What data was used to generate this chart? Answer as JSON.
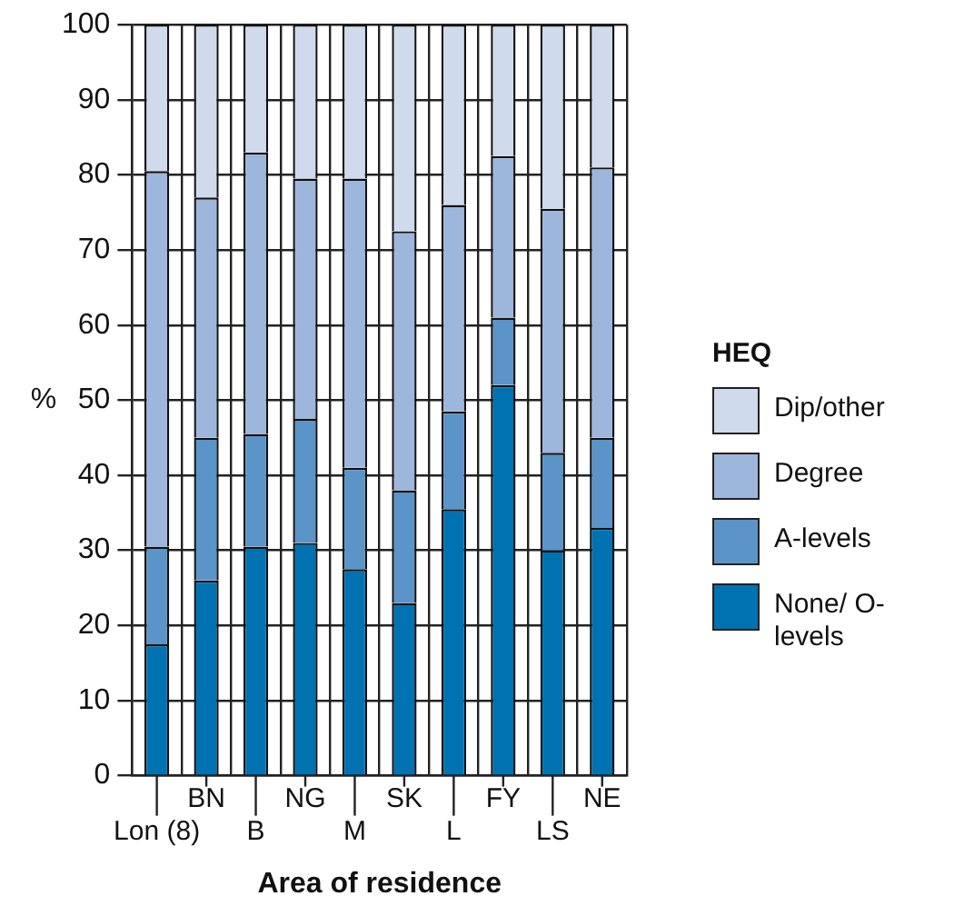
{
  "chart_data": {
    "type": "bar",
    "stacked": true,
    "xlabel": "Area of residence",
    "ylabel": "%",
    "legend_title": "HEQ",
    "legend": "right",
    "grid": true,
    "categories": [
      "Lon (8)",
      "BN",
      "B",
      "NG",
      "M",
      "SK",
      "L",
      "FY",
      "LS",
      "NE"
    ],
    "ylim": [
      0,
      100
    ],
    "yticks": [
      0,
      10,
      20,
      30,
      40,
      50,
      60,
      70,
      80,
      90,
      100
    ],
    "series": [
      {
        "name": "None/ O-levels",
        "color": "#0072b2",
        "values": [
          17.5,
          26,
          30.5,
          31,
          27.5,
          23,
          35.5,
          52,
          30,
          33
        ]
      },
      {
        "name": "A-levels",
        "color": "#5b94c8",
        "values": [
          13,
          19,
          15,
          16.5,
          13.5,
          15,
          13,
          9,
          13,
          12
        ]
      },
      {
        "name": "Degree",
        "color": "#9db6dc",
        "values": [
          50,
          32,
          37.5,
          32,
          38.5,
          34.5,
          27.5,
          21.5,
          32.5,
          36
        ]
      },
      {
        "name": "Dip/other",
        "color": "#cfdbec",
        "values": [
          19.5,
          23,
          17,
          20.5,
          20.5,
          27.5,
          24,
          17.5,
          24.5,
          19
        ]
      }
    ]
  }
}
